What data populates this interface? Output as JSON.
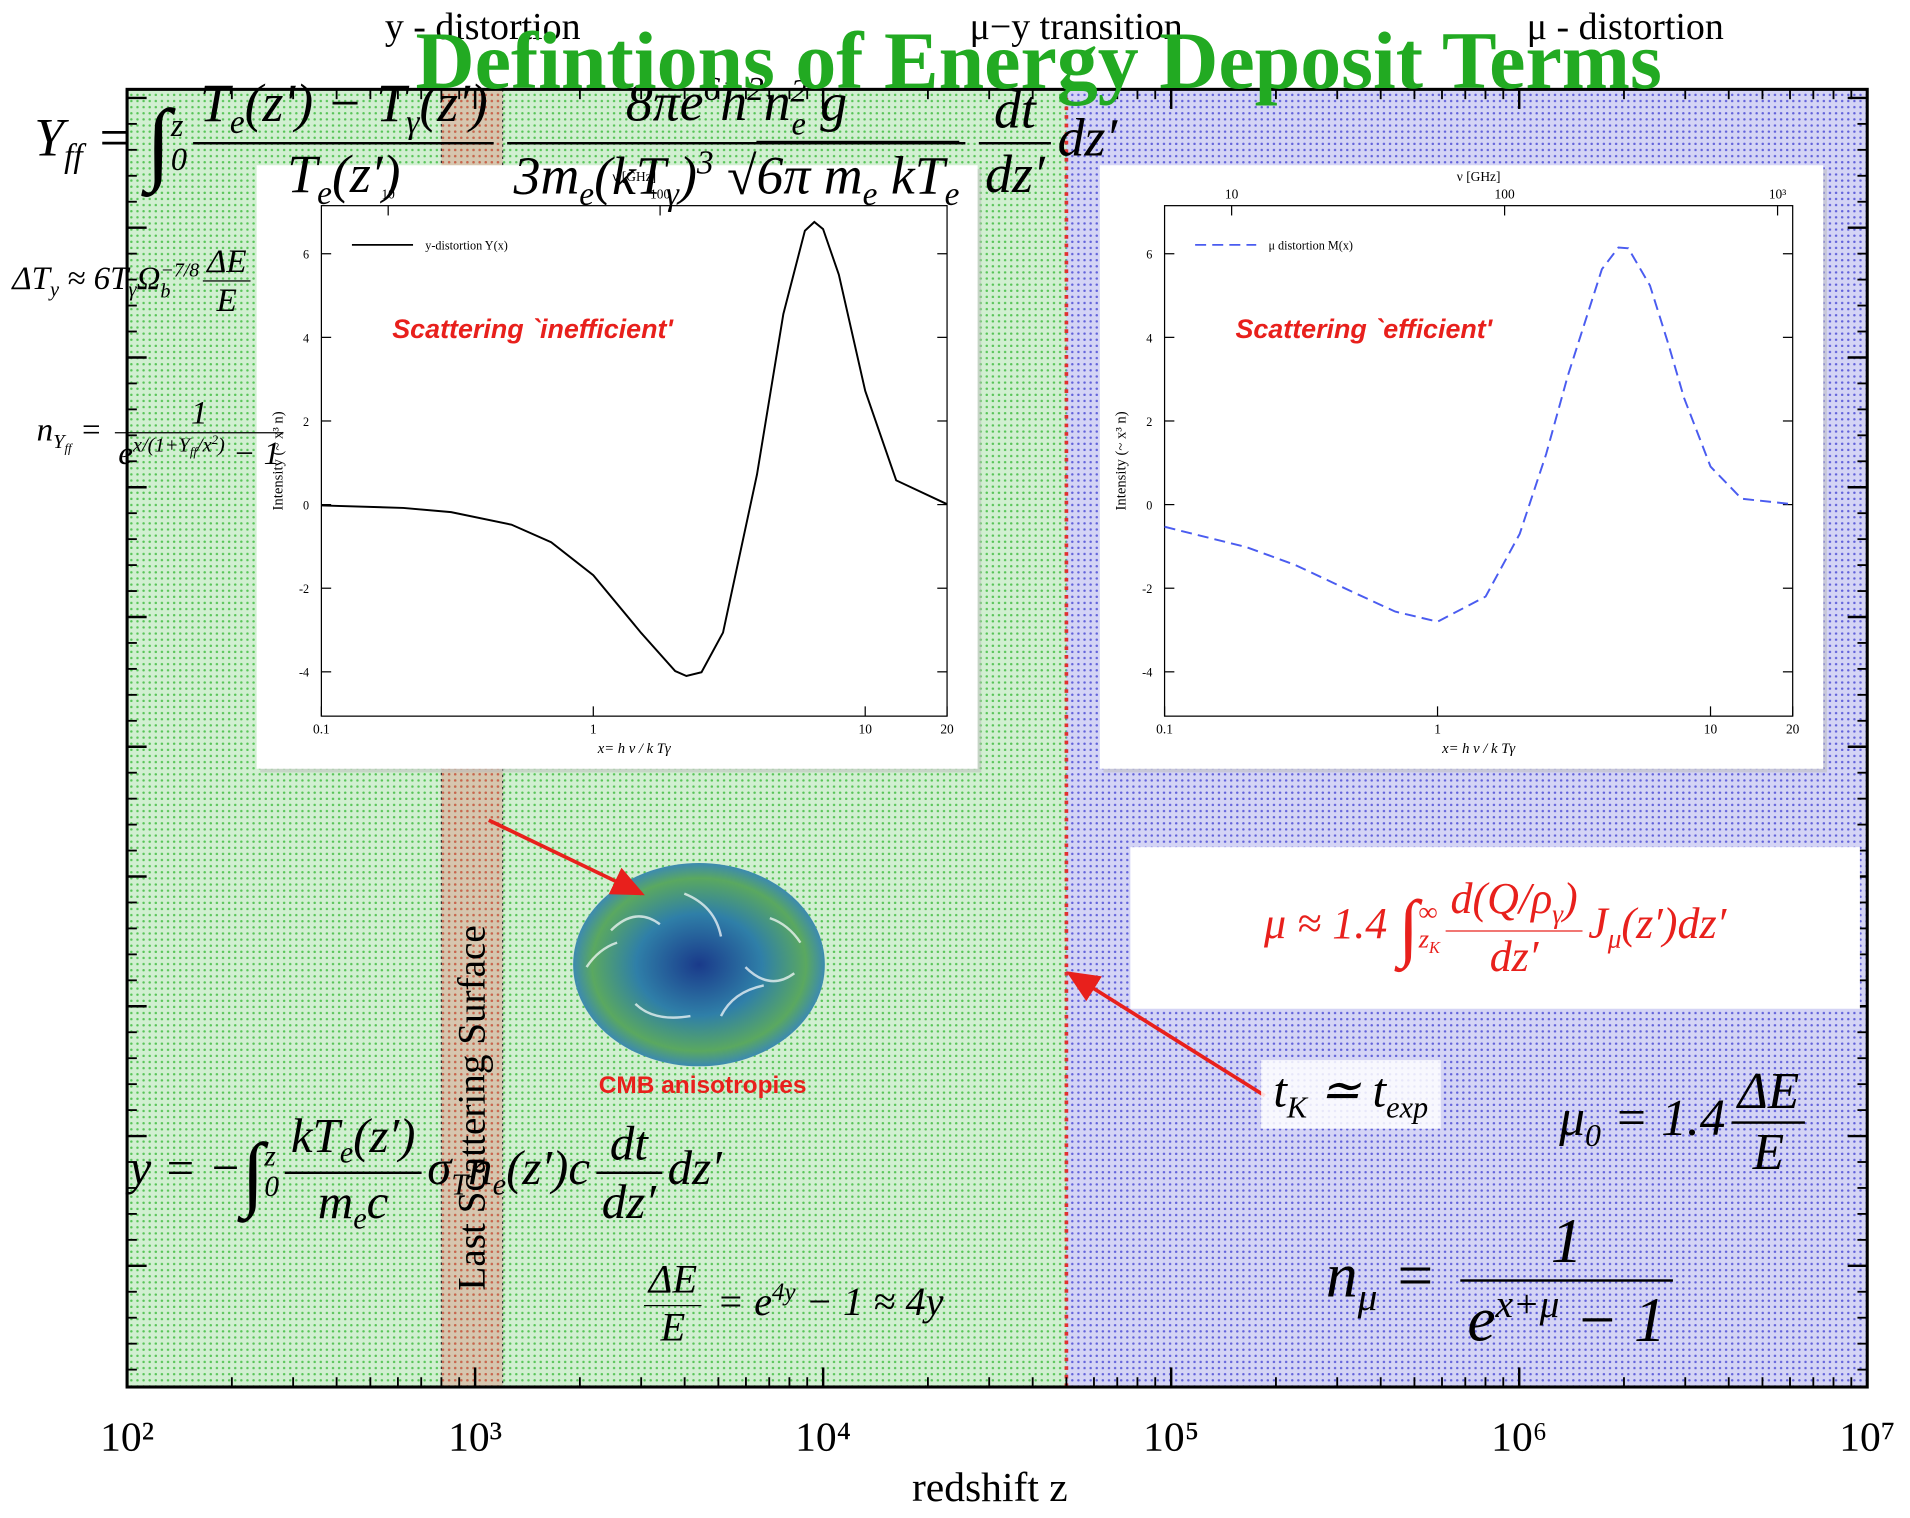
{
  "title": "Defintions of Energy Deposit Terms",
  "chart_data": [
    {
      "type": "regions",
      "xscale": "log",
      "xlim": [
        100,
        10000000
      ],
      "xticks": [
        {
          "value": 100,
          "label": "10²"
        },
        {
          "value": 1000,
          "label": "10³"
        },
        {
          "value": 10000,
          "label": "10⁴"
        },
        {
          "value": 100000,
          "label": "10⁵"
        },
        {
          "value": 1000000,
          "label": "10⁶"
        },
        {
          "value": 10000000,
          "label": "10⁷"
        }
      ],
      "xlabel": "redshift z",
      "regions": [
        {
          "name": "y - distortion",
          "xlim": [
            100,
            50000
          ],
          "color": "#2fb52f"
        },
        {
          "name": "μ - distortion",
          "xlim": [
            50000,
            10000000
          ],
          "color": "#3a3ad0"
        }
      ],
      "transition": {
        "name": "μ−y transition",
        "x": 50000,
        "color": "#e03030"
      },
      "band": {
        "name": "Last Scattering Surface",
        "xlim": [
          800,
          1200
        ],
        "color": "#e84a4a"
      }
    },
    {
      "type": "line",
      "xscale": "log",
      "xlim": [
        0.1,
        20
      ],
      "ylim": [
        -5.06,
        7.15
      ],
      "xticks": [
        0.1,
        1,
        10,
        20
      ],
      "yticks": [
        -4,
        -2,
        0,
        2,
        4,
        6
      ],
      "x2lim": [
        5.68,
        1136
      ],
      "x2ticks": [
        10,
        100
      ],
      "x2label": "ν [GHz]",
      "xlabel": "x= h ν / k Tγ",
      "ylabel": "Intensity (~ x³ n)",
      "legend": "upper left",
      "annotation": "Scattering `inefficient'",
      "x": [
        0.1,
        0.2,
        0.3,
        0.5,
        0.7,
        1,
        1.5,
        2,
        2.2,
        2.5,
        3,
        4,
        5,
        6,
        6.5,
        7,
        8,
        10,
        13,
        20
      ],
      "series": [
        {
          "name": "y-distortion Y(x)",
          "color": "#000000",
          "dash": false,
          "values": [
            -0.02,
            -0.08,
            -0.18,
            -0.48,
            -0.9,
            -1.69,
            -3.07,
            -3.98,
            -4.1,
            -4.01,
            -3.06,
            0.72,
            4.56,
            6.55,
            6.76,
            6.59,
            5.5,
            2.72,
            0.58,
            0.01
          ]
        }
      ]
    },
    {
      "type": "line",
      "xscale": "log",
      "xlim": [
        0.1,
        20
      ],
      "ylim": [
        -5.06,
        7.15
      ],
      "xticks": [
        0.1,
        1,
        10,
        20
      ],
      "yticks": [
        -4,
        -2,
        0,
        2,
        4,
        6
      ],
      "x2lim": [
        5.68,
        1136
      ],
      "x2ticks": [
        10,
        100,
        {
          "value": 1000,
          "label": "10³"
        }
      ],
      "x2label": "ν [GHz]",
      "xlabel": "x= h ν / k Tγ",
      "ylabel": "Intensity (~ x³ n)",
      "legend": "upper left",
      "annotation": "Scattering `efficient'",
      "x": [
        0.1,
        0.2,
        0.3,
        0.5,
        0.7,
        1,
        1.5,
        2,
        2.5,
        3,
        4,
        4.6,
        5,
        6,
        7,
        8,
        10,
        13,
        20
      ],
      "series": [
        {
          "name": "μ distortion M(x)",
          "color": "#4a5cf0",
          "dash": true,
          "values": [
            -0.53,
            -1.02,
            -1.44,
            -2.12,
            -2.56,
            -2.8,
            -2.2,
            -0.7,
            1.21,
            3.08,
            5.63,
            6.15,
            6.13,
            5.24,
            3.85,
            2.55,
            0.91,
            0.14,
            0.01
          ]
        }
      ]
    }
  ],
  "annotations": {
    "cmb": "CMB anisotropies"
  },
  "equations": [
    {
      "parts": [
        {
          "b": "Y",
          "sub": "ff"
        },
        " = ",
        {
          "int": "∫",
          "sub": "0",
          "sup": "z"
        },
        {
          "num": [
            {
              "b": "T",
              "sub": "e"
            },
            "(z′) − ",
            {
              "b": "T",
              "sub": "γ"
            },
            "(z′)"
          ],
          "den": [
            {
              "b": "T",
              "sub": "e"
            },
            "(z′)"
          ]
        },
        {
          "num": [
            "8π",
            {
              "b": "e",
              "sup": "6"
            },
            {
              "b": "h",
              "sup": "2"
            },
            {
              "b": "n",
              "sub": "e",
              "sup": "2"
            },
            " g"
          ],
          "den": [
            "3",
            {
              "b": "m",
              "sub": "e"
            },
            "(k",
            {
              "b": "T",
              "sub": "γ"
            },
            {
              "b": ")",
              "sup": "3"
            },
            " √",
            {
              "over": [
                "6π ",
                {
                  "b": "m",
                  "sub": "e"
                },
                " k",
                {
                  "b": "T",
                  "sub": "e"
                }
              ]
            }
          ]
        },
        {
          "num": [
            "dt"
          ],
          "den": [
            "dz′"
          ]
        },
        "dz′"
      ]
    },
    {
      "parts": [
        {
          "b": "ΔT",
          "sub": "y"
        },
        " ≈ 6",
        {
          "b": "T",
          "sub": "γ"
        },
        {
          "b": "Ω",
          "sub": "b",
          "sup": "−7/8"
        },
        {
          "num": [
            "ΔE"
          ],
          "den": [
            "E"
          ]
        }
      ]
    },
    {
      "parts": [
        {
          "b": "n",
          "sub": [
            {
              "b": "Y",
              "sub": "ff"
            }
          ]
        },
        " = ",
        {
          "num": [
            "1"
          ],
          "den": [
            {
              "b": "e",
              "sup": [
                "x/(1+",
                {
                  "b": "Y",
                  "sub": "ff"
                },
                "/",
                {
                  "b": "x",
                  "sup": "2"
                },
                ")"
              ]
            },
            " − 1"
          ]
        }
      ]
    },
    {
      "color": "#e8201c",
      "parts": [
        "μ ≈ 1.4 ",
        {
          "int": "∫",
          "sub": [
            {
              "b": "z",
              "sub": "K"
            }
          ],
          "sup": "∞"
        },
        {
          "num": [
            "d(Q/",
            {
              "b": "ρ",
              "sub": "γ"
            },
            ")"
          ],
          "den": [
            "dz′"
          ]
        },
        {
          "b": "J",
          "sub": "μ"
        },
        "(z′)dz′"
      ]
    },
    {
      "parts": [
        {
          "b": "t",
          "sub": "K"
        },
        " ≃ ",
        {
          "b": "t",
          "sub": "exp"
        }
      ]
    },
    {
      "parts": [
        {
          "b": "μ",
          "sub": "0"
        },
        " = 1.4",
        {
          "num": [
            "ΔE"
          ],
          "den": [
            "E"
          ]
        }
      ]
    },
    {
      "parts": [
        {
          "b": "n",
          "sub": "μ"
        },
        " = ",
        {
          "num": [
            "1"
          ],
          "den": [
            {
              "b": "e",
              "sup": "x+μ"
            },
            " − 1"
          ]
        }
      ]
    },
    {
      "parts": [
        "y = −",
        {
          "int": "∫",
          "sub": "0",
          "sup": "z"
        },
        {
          "num": [
            "k",
            {
              "b": "T",
              "sub": "e"
            },
            "(z′)"
          ],
          "den": [
            {
              "b": "m",
              "sub": "e"
            },
            "c"
          ]
        },
        {
          "b": "σ",
          "sub": "T"
        },
        {
          "b": "n",
          "sub": "e"
        },
        "(z′)c",
        {
          "num": [
            "dt"
          ],
          "den": [
            "dz′"
          ]
        },
        "dz′"
      ]
    },
    {
      "parts": [
        {
          "num": [
            "ΔE"
          ],
          "den": [
            "E"
          ]
        },
        " = ",
        {
          "b": "e",
          "sup": "4y"
        },
        " − 1 ≈ 4y"
      ]
    }
  ]
}
